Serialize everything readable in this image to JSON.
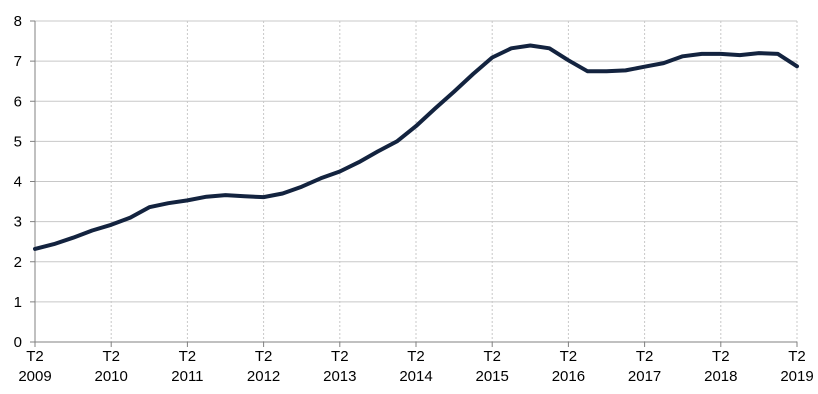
{
  "chart_data": {
    "type": "line",
    "title": "",
    "xlabel": "",
    "ylabel": "",
    "ylim": [
      0,
      8
    ],
    "yticks": [
      0,
      1,
      2,
      3,
      4,
      5,
      6,
      7,
      8
    ],
    "xlim": [
      2009.25,
      2019.25
    ],
    "xticks": [
      {
        "x": 2009.25,
        "line1": "T2",
        "line2": "2009"
      },
      {
        "x": 2010.25,
        "line1": "T2",
        "line2": "2010"
      },
      {
        "x": 2011.25,
        "line1": "T2",
        "line2": "2011"
      },
      {
        "x": 2012.25,
        "line1": "T2",
        "line2": "2012"
      },
      {
        "x": 2013.25,
        "line1": "T2",
        "line2": "2013"
      },
      {
        "x": 2014.25,
        "line1": "T2",
        "line2": "2014"
      },
      {
        "x": 2015.25,
        "line1": "T2",
        "line2": "2015"
      },
      {
        "x": 2016.25,
        "line1": "T2",
        "line2": "2016"
      },
      {
        "x": 2017.25,
        "line1": "T2",
        "line2": "2017"
      },
      {
        "x": 2018.25,
        "line1": "T2",
        "line2": "2018"
      },
      {
        "x": 2019.25,
        "line1": "T2",
        "line2": "2019"
      }
    ],
    "grid": {
      "horizontal": true,
      "vertical": true
    },
    "colors": {
      "series": "#13233f",
      "grid": "#c8c8c8",
      "axis": "#808080"
    },
    "series": [
      {
        "name": "",
        "x": [
          2009.25,
          2009.5,
          2009.75,
          2010.0,
          2010.25,
          2010.5,
          2010.75,
          2011.0,
          2011.25,
          2011.5,
          2011.75,
          2012.0,
          2012.25,
          2012.5,
          2012.75,
          2013.0,
          2013.25,
          2013.5,
          2013.75,
          2014.0,
          2014.25,
          2014.5,
          2014.75,
          2015.0,
          2015.25,
          2015.5,
          2015.75,
          2016.0,
          2016.25,
          2016.5,
          2016.75,
          2017.0,
          2017.25,
          2017.5,
          2017.75,
          2018.0,
          2018.25,
          2018.5,
          2018.75,
          2019.0,
          2019.25
        ],
        "values": [
          2.32,
          2.44,
          2.6,
          2.78,
          2.92,
          3.1,
          3.36,
          3.46,
          3.53,
          3.62,
          3.66,
          3.63,
          3.61,
          3.7,
          3.87,
          4.08,
          4.25,
          4.48,
          4.75,
          5.0,
          5.38,
          5.82,
          6.24,
          6.68,
          7.09,
          7.32,
          7.39,
          7.32,
          7.02,
          6.75,
          6.75,
          6.77,
          6.86,
          6.95,
          7.12,
          7.18,
          7.18,
          7.15,
          7.2,
          7.18,
          6.87
        ]
      }
    ]
  }
}
